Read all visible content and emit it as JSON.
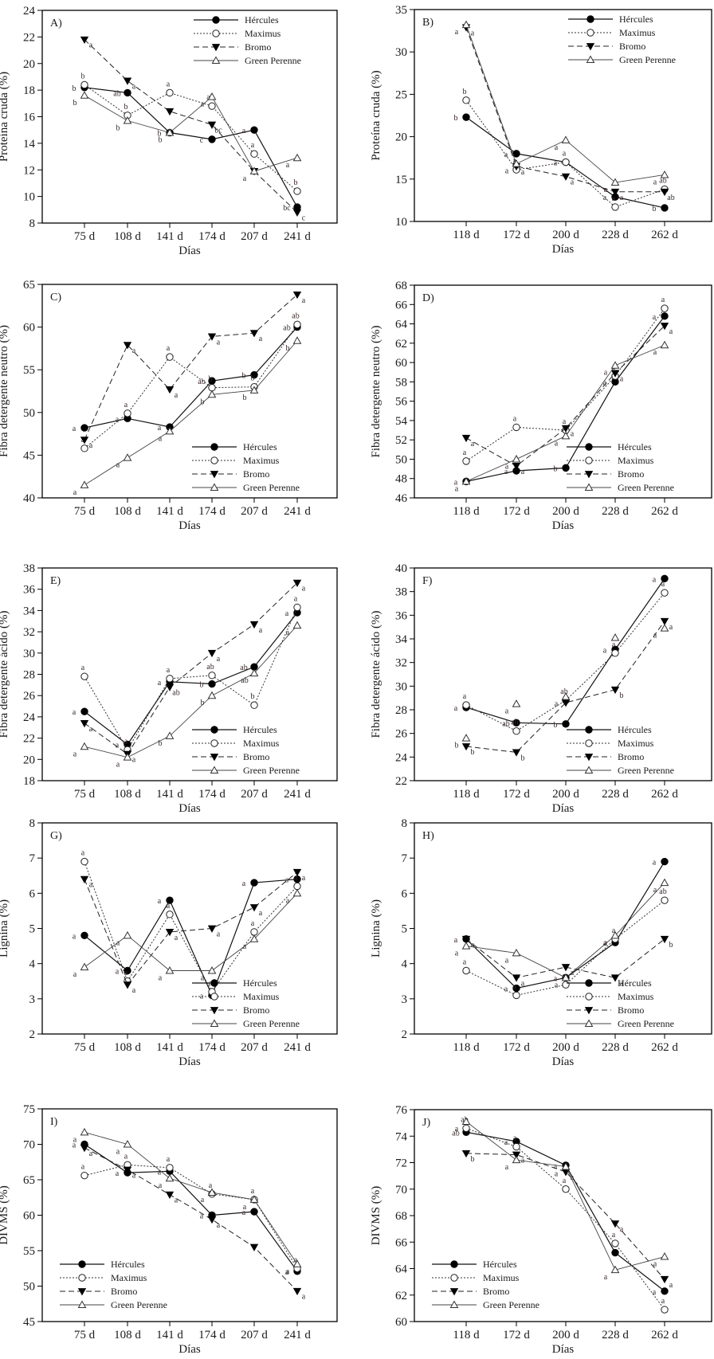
{
  "figure": {
    "legend_entries": [
      "Hércules",
      "Maximus",
      "Bromo",
      "Green Perenne"
    ],
    "xlabel": "Días"
  },
  "chart_data": [
    {
      "id": "A",
      "type": "line",
      "title": "A)",
      "ylabel": "Proteína cruda (%)",
      "xlabel": "Días",
      "categories": [
        "75 d",
        "108 d",
        "141 d",
        "174 d",
        "207 d",
        "241 d"
      ],
      "ylim": [
        8,
        24
      ],
      "yticks": [
        8,
        10,
        12,
        14,
        16,
        18,
        20,
        22,
        24
      ],
      "legend": "top-right",
      "series": [
        {
          "name": "Hércules",
          "values": [
            18.2,
            17.8,
            14.8,
            14.3,
            15.0,
            9.2
          ],
          "letters": [
            "b",
            "ab",
            "b",
            "c",
            "a",
            "bc"
          ]
        },
        {
          "name": "Maximus",
          "values": [
            18.4,
            16.1,
            17.8,
            16.8,
            13.2,
            10.4
          ],
          "letters": [
            "b",
            "b",
            "a",
            "ab",
            "a",
            "b"
          ]
        },
        {
          "name": "Bromo",
          "values": [
            21.8,
            18.7,
            16.4,
            15.4,
            11.9,
            8.8
          ],
          "letters": [
            "a",
            "a",
            "",
            "bc",
            "",
            "c"
          ]
        },
        {
          "name": "Green Perenne",
          "values": [
            17.6,
            15.7,
            14.8,
            17.5,
            11.9,
            12.9
          ],
          "letters": [
            "b",
            "b",
            "b",
            "a",
            "a",
            "a"
          ]
        }
      ]
    },
    {
      "id": "B",
      "type": "line",
      "title": "B)",
      "ylabel": "Proteína cruda (%)",
      "xlabel": "Días",
      "categories": [
        "118 d",
        "172 d",
        "200 d",
        "228 d",
        "262 d"
      ],
      "ylim": [
        10,
        35
      ],
      "yticks": [
        10,
        15,
        20,
        25,
        30,
        35
      ],
      "legend": "top-right",
      "series": [
        {
          "name": "Hércules",
          "values": [
            22.3,
            18.0,
            17.0,
            12.9,
            11.6
          ],
          "letters": [
            "b",
            "a",
            "a",
            "a",
            "b"
          ]
        },
        {
          "name": "Maximus",
          "values": [
            24.3,
            16.1,
            17.0,
            11.7,
            13.8
          ],
          "letters": [
            "b",
            "a",
            "a",
            "a",
            "ab"
          ]
        },
        {
          "name": "Bromo",
          "values": [
            32.9,
            16.5,
            15.3,
            13.5,
            13.5
          ],
          "letters": [
            "a",
            "a",
            "a",
            "a",
            "ab"
          ]
        },
        {
          "name": "Green Perenne",
          "values": [
            33.2,
            16.8,
            19.6,
            14.6,
            15.5
          ],
          "letters": [
            "a",
            "a",
            "a",
            "a",
            "a"
          ]
        }
      ]
    },
    {
      "id": "C",
      "type": "line",
      "title": "C)",
      "ylabel": "Fibra detergente neutro (%)",
      "xlabel": "Días",
      "categories": [
        "75 d",
        "108 d",
        "141 d",
        "174 d",
        "207 d",
        "241 d"
      ],
      "ylim": [
        40,
        65
      ],
      "yticks": [
        40,
        45,
        50,
        55,
        60,
        65
      ],
      "legend": "bottom-right",
      "series": [
        {
          "name": "Hércules",
          "values": [
            48.2,
            49.3,
            48.3,
            53.7,
            54.4,
            60.0
          ],
          "letters": [
            "a",
            "a",
            "a",
            "ab",
            "b",
            "ab"
          ]
        },
        {
          "name": "Maximus",
          "values": [
            45.8,
            49.9,
            56.5,
            52.9,
            53.0,
            60.3
          ],
          "letters": [
            "a",
            "a",
            "a",
            "b",
            "b",
            "ab"
          ]
        },
        {
          "name": "Bromo",
          "values": [
            46.8,
            57.9,
            52.7,
            58.9,
            59.3,
            63.8
          ],
          "letters": [
            "a",
            "a",
            "a",
            "a",
            "a",
            "a"
          ]
        },
        {
          "name": "Green Perenne",
          "values": [
            41.5,
            44.7,
            47.8,
            52.1,
            52.6,
            58.4
          ],
          "letters": [
            "a",
            "a",
            "a",
            "b",
            "b",
            "b"
          ]
        }
      ]
    },
    {
      "id": "D",
      "type": "line",
      "title": "D)",
      "ylabel": "Fibra detergente neutro (%)",
      "xlabel": "Días",
      "categories": [
        "118 d",
        "172 d",
        "200 d",
        "228 d",
        "262 d"
      ],
      "ylim": [
        46,
        68
      ],
      "yticks": [
        46,
        48,
        50,
        52,
        54,
        56,
        58,
        60,
        62,
        64,
        66,
        68
      ],
      "legend": "bottom-right",
      "series": [
        {
          "name": "Hércules",
          "values": [
            47.7,
            48.8,
            49.1,
            58.0,
            64.8
          ],
          "letters": [
            "a",
            "a",
            "b",
            "a",
            "a"
          ]
        },
        {
          "name": "Maximus",
          "values": [
            49.8,
            53.3,
            53.0,
            58.6,
            65.6
          ],
          "letters": [
            "a",
            "a",
            "a",
            "a",
            "a"
          ]
        },
        {
          "name": "Bromo",
          "values": [
            52.2,
            49.3,
            53.2,
            58.9,
            63.8
          ],
          "letters": [
            "a",
            "a",
            "a",
            "a",
            "a"
          ]
        },
        {
          "name": "Green Perenne",
          "values": [
            47.7,
            50.0,
            52.4,
            59.7,
            61.8
          ],
          "letters": [
            "a",
            "a",
            "a",
            "a",
            "a"
          ]
        }
      ]
    },
    {
      "id": "E",
      "type": "line",
      "title": "E)",
      "ylabel": "Fibra detergente ácido (%)",
      "xlabel": "Días",
      "categories": [
        "75 d",
        "108 d",
        "141 d",
        "174 d",
        "207 d",
        "241 d"
      ],
      "ylim": [
        18,
        38
      ],
      "yticks": [
        18,
        20,
        22,
        24,
        26,
        28,
        30,
        32,
        34,
        36,
        38
      ],
      "legend": "bottom-right",
      "series": [
        {
          "name": "Hércules",
          "values": [
            24.5,
            21.4,
            27.3,
            27.1,
            28.7,
            33.8
          ],
          "letters": [
            "a",
            "a",
            "a",
            "b",
            "ab",
            "a"
          ]
        },
        {
          "name": "Maximus",
          "values": [
            27.8,
            20.9,
            27.6,
            27.9,
            25.1,
            34.3
          ],
          "letters": [
            "a",
            "a",
            "a",
            "ab",
            "b",
            "a"
          ]
        },
        {
          "name": "Bromo",
          "values": [
            23.4,
            20.5,
            26.8,
            30.0,
            32.7,
            36.6
          ],
          "letters": [
            "a",
            "a",
            "ab",
            "a",
            "a",
            "a"
          ]
        },
        {
          "name": "Green Perenne",
          "values": [
            21.2,
            20.2,
            22.2,
            26.0,
            28.1,
            32.6
          ],
          "letters": [
            "a",
            "a",
            "b",
            "b",
            "ab",
            "a"
          ]
        }
      ]
    },
    {
      "id": "F",
      "type": "line",
      "title": "F)",
      "ylabel": "Fibra detergente ácido (%)",
      "xlabel": "Días",
      "categories": [
        "118 d",
        "172 d",
        "200 d",
        "228 d",
        "262 d"
      ],
      "ylim": [
        22,
        40
      ],
      "yticks": [
        22,
        24,
        26,
        28,
        30,
        32,
        34,
        36,
        38,
        40
      ],
      "legend": "bottom-right",
      "series": [
        {
          "name": "Hércules",
          "values": [
            28.2,
            26.9,
            26.8,
            33.1,
            39.1
          ],
          "letters": [
            "a",
            "ab",
            "b",
            "a",
            "a"
          ]
        },
        {
          "name": "Maximus",
          "values": [
            28.4,
            26.2,
            28.8,
            32.8,
            37.9
          ],
          "letters": [
            "a",
            "ab",
            "ab",
            "a",
            "a"
          ]
        },
        {
          "name": "Bromo",
          "values": [
            24.9,
            24.4,
            28.6,
            29.7,
            35.5
          ],
          "letters": [
            "b",
            "b",
            "",
            "b",
            "a"
          ]
        },
        {
          "name": "Green Perenne",
          "values": [
            25.6,
            28.5,
            29.1,
            34.1,
            34.9
          ],
          "letters": [
            "b",
            "a",
            "a",
            "",
            "a"
          ],
          "markers_only": true
        }
      ]
    },
    {
      "id": "G",
      "type": "line",
      "title": "G)",
      "ylabel": "Lignina (%)",
      "xlabel": "Días",
      "categories": [
        "75 d",
        "108 d",
        "141 d",
        "174 d",
        "207 d",
        "241 d"
      ],
      "ylim": [
        2,
        8
      ],
      "yticks": [
        2,
        3,
        4,
        5,
        6,
        7,
        8
      ],
      "legend": "bottom-right",
      "series": [
        {
          "name": "Hércules",
          "values": [
            4.8,
            3.8,
            5.8,
            3.1,
            6.3,
            6.4
          ],
          "letters": [
            "a",
            "a",
            "a",
            "a",
            "a",
            "a"
          ]
        },
        {
          "name": "Maximus",
          "values": [
            6.9,
            3.5,
            5.4,
            3.2,
            4.9,
            6.2
          ],
          "letters": [
            "a",
            "a",
            "a",
            "a",
            "a",
            "a"
          ]
        },
        {
          "name": "Bromo",
          "values": [
            6.4,
            3.4,
            4.9,
            5.0,
            5.6,
            6.6
          ],
          "letters": [
            "a",
            "a",
            "a",
            "a",
            "a",
            "a"
          ]
        },
        {
          "name": "Green Perenne",
          "values": [
            3.9,
            4.8,
            3.8,
            3.8,
            4.7,
            6.0
          ],
          "letters": [
            "a",
            "a",
            "a",
            "a",
            "a",
            "a"
          ]
        }
      ]
    },
    {
      "id": "H",
      "type": "line",
      "title": "H)",
      "ylabel": "Lignina (%)",
      "xlabel": "Días",
      "categories": [
        "118 d",
        "172 d",
        "200 d",
        "228 d",
        "262 d"
      ],
      "ylim": [
        2,
        8
      ],
      "yticks": [
        2,
        3,
        4,
        5,
        6,
        7,
        8
      ],
      "legend": "bottom-right",
      "series": [
        {
          "name": "Hércules",
          "values": [
            4.7,
            3.3,
            3.6,
            4.6,
            6.9
          ],
          "letters": [
            "a",
            "a",
            "a",
            "a",
            "a"
          ]
        },
        {
          "name": "Maximus",
          "values": [
            3.8,
            3.1,
            3.4,
            4.7,
            5.8
          ],
          "letters": [
            "a",
            "a",
            "a",
            "a",
            "ab"
          ]
        },
        {
          "name": "Bromo",
          "values": [
            4.7,
            3.6,
            3.9,
            3.6,
            4.7
          ],
          "letters": [
            "a",
            "a",
            "a",
            "a",
            "b"
          ]
        },
        {
          "name": "Green Perenne",
          "values": [
            4.5,
            4.3,
            3.6,
            4.8,
            6.3
          ],
          "letters": [
            "a",
            "a",
            "a",
            "a",
            "a"
          ]
        }
      ]
    },
    {
      "id": "I",
      "type": "line",
      "title": "I)",
      "ylabel": "DIVMS (%)",
      "xlabel": "Días",
      "categories": [
        "75 d",
        "108 d",
        "141 d",
        "174 d",
        "207 d",
        "241 d"
      ],
      "ylim": [
        45,
        75
      ],
      "yticks": [
        45,
        50,
        55,
        60,
        65,
        70,
        75
      ],
      "legend": "bottom-left",
      "series": [
        {
          "name": "Hércules",
          "values": [
            70.0,
            66.0,
            66.2,
            60.0,
            60.5,
            52.1
          ],
          "letters": [
            "a",
            "a",
            "a",
            "a",
            "a",
            "a"
          ]
        },
        {
          "name": "Maximus",
          "values": [
            65.6,
            67.1,
            66.7,
            63.0,
            62.2,
            52.5
          ],
          "letters": [
            "a",
            "a",
            "a",
            "a",
            "a",
            "a"
          ]
        },
        {
          "name": "Bromo",
          "values": [
            69.5,
            66.4,
            62.9,
            59.4,
            55.5,
            49.3
          ],
          "letters": [
            "a",
            "a",
            "a",
            "a",
            "",
            "a"
          ]
        },
        {
          "name": "Green Perenne",
          "values": [
            71.7,
            70.0,
            65.2,
            63.2,
            62.2,
            53.1
          ],
          "letters": [
            "a",
            "a",
            "a",
            "a",
            "a",
            "a"
          ]
        }
      ]
    },
    {
      "id": "J",
      "type": "line",
      "title": "J)",
      "ylabel": "DIVMS (%)",
      "xlabel": "Días",
      "categories": [
        "118 d",
        "172 d",
        "200 d",
        "228 d",
        "262 d"
      ],
      "ylim": [
        60,
        76
      ],
      "yticks": [
        60,
        62,
        64,
        66,
        68,
        70,
        72,
        74,
        76
      ],
      "legend": "bottom-left",
      "series": [
        {
          "name": "Hércules",
          "values": [
            74.3,
            73.6,
            71.8,
            65.2,
            62.3
          ],
          "letters": [
            "ab",
            "a",
            "a",
            "",
            "a"
          ]
        },
        {
          "name": "Maximus",
          "values": [
            74.6,
            73.2,
            70.0,
            65.9,
            60.9
          ],
          "letters": [
            "ab",
            "a",
            "a",
            "a",
            "a"
          ]
        },
        {
          "name": "Bromo",
          "values": [
            72.7,
            72.6,
            71.3,
            67.4,
            63.2
          ],
          "letters": [
            "b",
            "a",
            "a",
            "a",
            "a"
          ]
        },
        {
          "name": "Green Perenne",
          "values": [
            75.1,
            72.2,
            71.7,
            63.9,
            64.9
          ],
          "letters": [
            "a",
            "a",
            "a",
            "a",
            "a"
          ]
        }
      ]
    }
  ]
}
